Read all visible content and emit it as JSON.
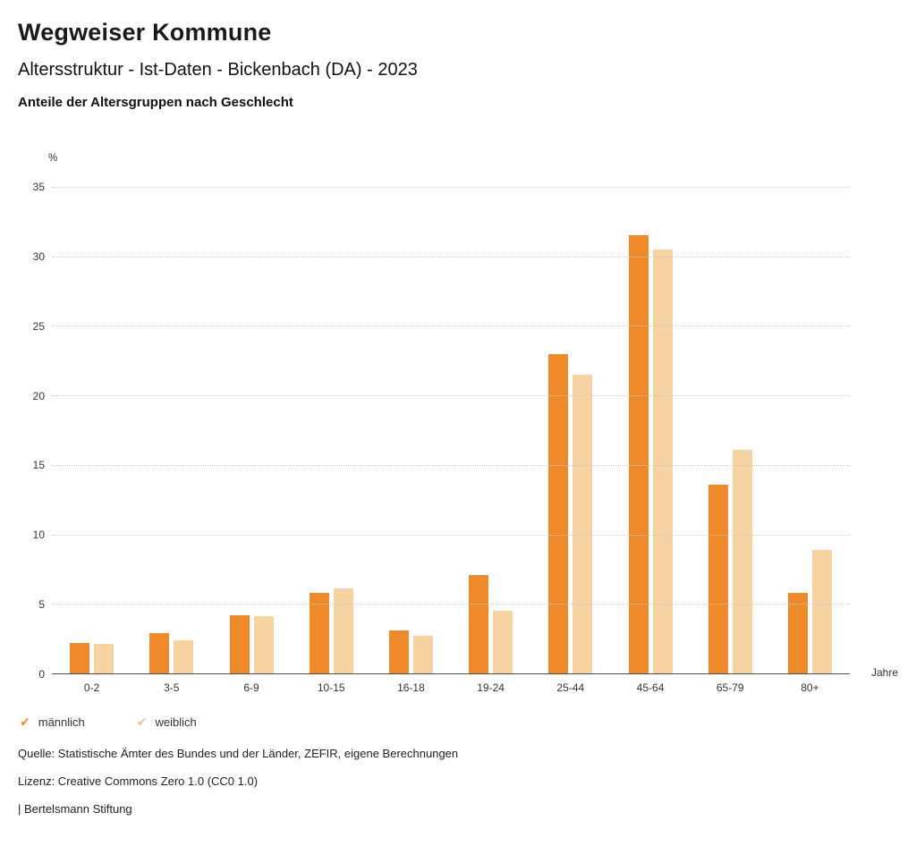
{
  "header": {
    "title": "Wegweiser Kommune",
    "subtitle": "Altersstruktur - Ist-Daten - Bickenbach (DA) - 2023",
    "subsubtitle": "Anteile der Altersgruppen nach Geschlecht"
  },
  "chart_data": {
    "type": "bar",
    "title": "Anteile der Altersgruppen nach Geschlecht",
    "categories": [
      "0-2",
      "3-5",
      "6-9",
      "10-15",
      "16-18",
      "19-24",
      "25-44",
      "45-64",
      "65-79",
      "80+"
    ],
    "series": [
      {
        "name": "männlich",
        "color": "#ee8a2a",
        "values": [
          2.2,
          2.9,
          4.2,
          5.8,
          3.1,
          7.1,
          23.0,
          31.5,
          13.6,
          5.8
        ]
      },
      {
        "name": "weiblich",
        "color": "#f8d3a2",
        "values": [
          2.1,
          2.4,
          4.1,
          6.1,
          2.7,
          4.5,
          21.5,
          30.5,
          16.1,
          8.9
        ]
      }
    ],
    "ylabel": "%",
    "xlabel": "Jahre",
    "ylim": [
      0,
      35
    ],
    "yticks": [
      0,
      5,
      10,
      15,
      20,
      25,
      30,
      35
    ],
    "grid": "horizontal-dotted",
    "legend_position": "bottom-left"
  },
  "legend": {
    "items": [
      {
        "label": "männlich",
        "color": "#ee8a2a",
        "icon": "check"
      },
      {
        "label": "weiblich",
        "color": "#f3c188",
        "icon": "check"
      }
    ]
  },
  "footer": {
    "source": "Quelle: Statistische Ämter des Bundes und der Länder, ZEFIR, eigene Berechnungen",
    "license": "Lizenz: Creative Commons Zero 1.0 (CC0 1.0)",
    "attribution": "| Bertelsmann Stiftung"
  }
}
